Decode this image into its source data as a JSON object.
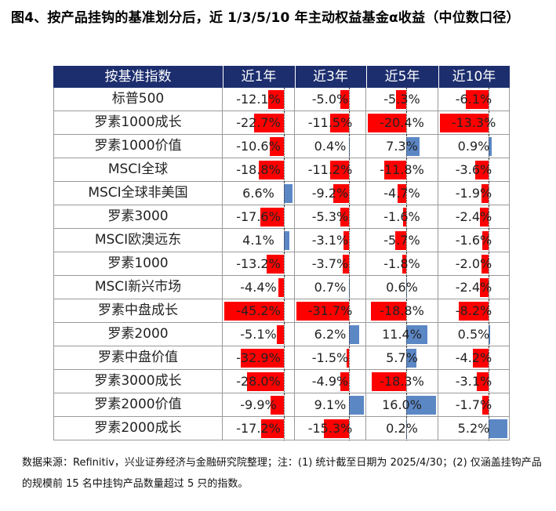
{
  "title": "图4、按产品挂钩的基准划分后，近 1/3/5/10 年主动权益基金α收益（中位数口径）",
  "source": "数据来源：Refinitiv，兴业证券经济与金融研究院整理；注：(1) 统计截至日期为 2025/4/30；(2) 仅涵盖挂钩产品的规模前 15 名中挂钩产品数量超过 5 只的指数。",
  "colors": {
    "header_bg": "#1c2e6e",
    "negative": "#ff0000",
    "positive": "#5b87c5"
  },
  "chart_data": {
    "type": "table",
    "headers": [
      "按基准指数",
      "近1年",
      "近3年",
      "近5年",
      "近10年"
    ],
    "value_unit": "%",
    "rows": [
      {
        "name": "标普500",
        "values": [
          -12.1,
          -5.0,
          -5.3,
          -6.1
        ]
      },
      {
        "name": "罗素1000成长",
        "values": [
          -22.7,
          -11.5,
          -20.4,
          -13.3
        ]
      },
      {
        "name": "罗素1000价值",
        "values": [
          -10.6,
          0.4,
          7.3,
          0.9
        ]
      },
      {
        "name": "MSCI全球",
        "values": [
          -18.8,
          -11.2,
          -11.8,
          -3.6
        ]
      },
      {
        "name": "MSCI全球非美国",
        "values": [
          6.6,
          -9.2,
          -4.7,
          -1.9
        ]
      },
      {
        "name": "罗素3000",
        "values": [
          -17.6,
          -5.3,
          -1.6,
          -2.4
        ]
      },
      {
        "name": "MSCI欧澳远东",
        "values": [
          4.1,
          -3.1,
          -5.7,
          -1.6
        ]
      },
      {
        "name": "罗素1000",
        "values": [
          -13.2,
          -3.7,
          -1.8,
          -2.0
        ]
      },
      {
        "name": "MSCI新兴市场",
        "values": [
          -4.4,
          0.7,
          0.6,
          -2.4
        ]
      },
      {
        "name": "罗素中盘成长",
        "values": [
          -45.2,
          -31.7,
          -18.8,
          -8.2
        ]
      },
      {
        "name": "罗素2000",
        "values": [
          -5.1,
          6.2,
          11.4,
          0.5
        ]
      },
      {
        "name": "罗素中盘价值",
        "values": [
          -32.9,
          -1.5,
          5.7,
          -4.2
        ]
      },
      {
        "name": "罗素3000成长",
        "values": [
          -28.0,
          -4.9,
          -18.3,
          -3.1
        ]
      },
      {
        "name": "罗素2000价值",
        "values": [
          -9.9,
          9.1,
          16.0,
          -1.7
        ]
      },
      {
        "name": "罗素2000成长",
        "values": [
          -17.2,
          -15.3,
          0.2,
          5.2
        ]
      }
    ],
    "value_labels": [
      [
        "-12.1%",
        "-5.0%",
        "-5.3%",
        "-6.1%"
      ],
      [
        "-22.7%",
        "-11.5%",
        "-20.4%",
        "-13.3%"
      ],
      [
        "-10.6%",
        "0.4%",
        "7.3%",
        "0.9%"
      ],
      [
        "-18.8%",
        "-11.2%",
        "-11.8%",
        "-3.6%"
      ],
      [
        "6.6%",
        "-9.2%",
        "-4.7%",
        "-1.9%"
      ],
      [
        "-17.6%",
        "-5.3%",
        "-1.6%",
        "-2.4%"
      ],
      [
        "4.1%",
        "-3.1%",
        "-5.7%",
        "-1.6%"
      ],
      [
        "-13.2%",
        "-3.7%",
        "-1.8%",
        "-2.0%"
      ],
      [
        "-4.4%",
        "0.7%",
        "0.6%",
        "-2.4%"
      ],
      [
        "-45.2%",
        "-31.7%",
        "-18.8%",
        "-8.2%"
      ],
      [
        "-5.1%",
        "6.2%",
        "11.4%",
        "0.5%"
      ],
      [
        "-32.9%",
        "-1.5%",
        "5.7%",
        "-4.2%"
      ],
      [
        "-28.0%",
        "-4.9%",
        "-18.3%",
        "-3.1%"
      ],
      [
        "-9.9%",
        "9.1%",
        "16.0%",
        "-1.7%"
      ],
      [
        "-17.2%",
        "-15.3%",
        "0.2%",
        "5.2%"
      ]
    ],
    "column_ranges": [
      [
        -45.2,
        6.6
      ],
      [
        -31.7,
        9.1
      ],
      [
        -20.4,
        16.0
      ],
      [
        -13.3,
        5.2
      ]
    ]
  }
}
